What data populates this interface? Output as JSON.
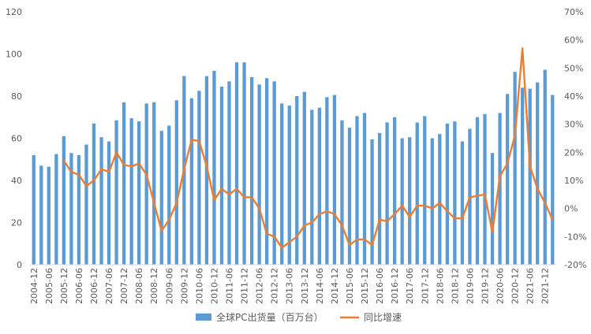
{
  "chart_data": {
    "type": "bar",
    "colors": {
      "bars": "#5b9bd5",
      "line": "#ed7d31",
      "text": "#595959",
      "axis": "#d9d9d9"
    },
    "x_tick_labels": [
      "2004-12",
      "2005-06",
      "2005-12",
      "2006-06",
      "2006-12",
      "2007-06",
      "2007-12",
      "2008-06",
      "2008-12",
      "2009-06",
      "2009-12",
      "2010-06",
      "2010-12",
      "2011-06",
      "2011-12",
      "2012-06",
      "2012-12",
      "2013-06",
      "2013-12",
      "2014-06",
      "2014-12",
      "2015-06",
      "2015-12",
      "2016-06",
      "2016-12",
      "2017-06",
      "2017-12",
      "2018-06",
      "2018-12",
      "2019-06",
      "2019-12",
      "2020-06",
      "2020-12",
      "2021-06",
      "2021-12"
    ],
    "y_left": {
      "min": 0,
      "max": 120,
      "step": 20,
      "ticks": [
        "0",
        "20",
        "40",
        "60",
        "80",
        "100",
        "120"
      ]
    },
    "y_right": {
      "min": -0.2,
      "max": 0.7,
      "step": 0.1,
      "ticks": [
        "-20%",
        "-10%",
        "0%",
        "10%",
        "20%",
        "30%",
        "40%",
        "50%",
        "60%",
        "70%"
      ]
    },
    "series": [
      {
        "name": "全球PC出货量（百万台）",
        "type": "bar",
        "values": [
          52,
          47,
          46.5,
          52.5,
          61,
          53,
          52,
          57,
          67,
          60.5,
          58.5,
          68.5,
          77,
          69.5,
          68,
          76.5,
          77,
          63.5,
          66,
          78,
          89.5,
          79,
          82.5,
          89.5,
          92,
          84.5,
          87,
          96,
          96,
          89,
          85.5,
          88.5,
          87,
          76.5,
          75.5,
          80,
          82,
          73.5,
          74.5,
          79.5,
          80.5,
          68.5,
          65,
          70.5,
          72,
          59.5,
          62.5,
          67.5,
          70,
          60,
          60.5,
          67.5,
          70.5,
          60,
          62,
          67,
          68,
          58.5,
          64.5,
          70,
          71.5,
          53,
          72,
          81,
          91.5,
          84,
          83.5,
          86.5,
          92.5,
          80.5
        ]
      },
      {
        "name": "同比增速",
        "type": "line",
        "start_index": 4,
        "values": [
          0.17,
          0.13,
          0.12,
          0.08,
          0.1,
          0.14,
          0.13,
          0.2,
          0.155,
          0.15,
          0.16,
          0.12,
          0.02,
          -0.08,
          -0.04,
          0.02,
          0.14,
          0.245,
          0.24,
          0.15,
          0.03,
          0.07,
          0.05,
          0.07,
          0.04,
          0.04,
          0.0,
          -0.09,
          -0.1,
          -0.14,
          -0.12,
          -0.1,
          -0.06,
          -0.05,
          -0.02,
          -0.01,
          -0.02,
          -0.06,
          -0.13,
          -0.11,
          -0.11,
          -0.13,
          -0.04,
          -0.045,
          -0.02,
          0.01,
          -0.03,
          0.01,
          0.01,
          0.0,
          0.02,
          -0.01,
          -0.035,
          -0.035,
          0.04,
          0.045,
          0.05,
          -0.085,
          0.115,
          0.16,
          0.26,
          0.57,
          0.15,
          0.07,
          0.02,
          -0.04
        ]
      }
    ],
    "legend_position": "bottom",
    "grid": false
  }
}
